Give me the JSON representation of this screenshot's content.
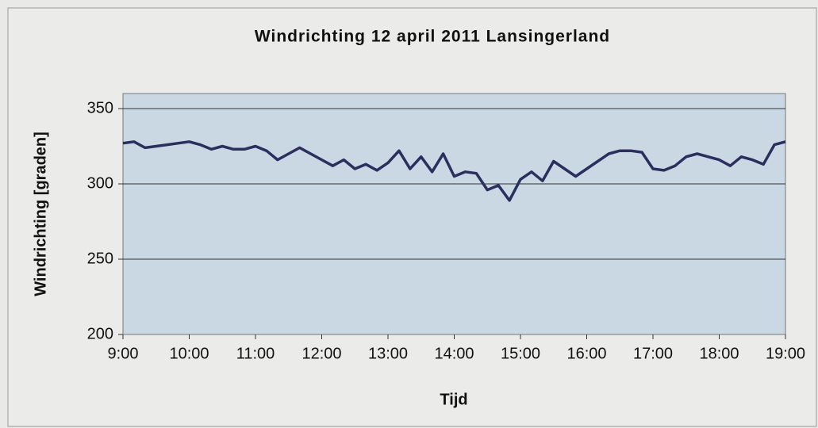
{
  "chart_data": {
    "type": "line",
    "title": "Windrichting 12 april 2011 Lansingerland",
    "x_label": "Tijd",
    "y_label": "Windrichting [graden]",
    "x": [
      540,
      550,
      560,
      570,
      580,
      590,
      600,
      610,
      620,
      630,
      640,
      650,
      660,
      670,
      680,
      690,
      700,
      710,
      720,
      730,
      740,
      750,
      760,
      770,
      780,
      790,
      800,
      810,
      820,
      830,
      840,
      850,
      860,
      870,
      880,
      890,
      900,
      910,
      920,
      930,
      940,
      950,
      960,
      970,
      980,
      990,
      1000,
      1010,
      1020,
      1030,
      1040,
      1050,
      1060,
      1070,
      1080,
      1090,
      1100,
      1110,
      1120,
      1130,
      1140
    ],
    "series": [
      {
        "name": "Windrichting",
        "color": "#2b2f5e",
        "values": [
          327,
          328,
          324,
          325,
          326,
          327,
          328,
          326,
          323,
          325,
          323,
          323,
          325,
          322,
          316,
          320,
          324,
          320,
          316,
          312,
          316,
          310,
          313,
          309,
          314,
          322,
          310,
          318,
          308,
          320,
          305,
          308,
          307,
          296,
          299,
          289,
          303,
          308,
          302,
          315,
          310,
          305,
          310,
          315,
          320,
          322,
          322,
          321,
          310,
          309,
          312,
          318,
          320,
          318,
          316,
          312,
          318,
          316,
          313,
          326,
          328
        ]
      }
    ],
    "xlim": [
      540,
      1140
    ],
    "xticks": [
      {
        "value": 540,
        "label": "9:00"
      },
      {
        "value": 600,
        "label": "10:00"
      },
      {
        "value": 660,
        "label": "11:00"
      },
      {
        "value": 720,
        "label": "12:00"
      },
      {
        "value": 780,
        "label": "13:00"
      },
      {
        "value": 840,
        "label": "14:00"
      },
      {
        "value": 900,
        "label": "15:00"
      },
      {
        "value": 960,
        "label": "16:00"
      },
      {
        "value": 1020,
        "label": "17:00"
      },
      {
        "value": 1080,
        "label": "18:00"
      },
      {
        "value": 1140,
        "label": "19:00"
      }
    ],
    "ylim": [
      200,
      360
    ],
    "yticks": [
      200,
      250,
      300,
      350
    ],
    "grid": true
  }
}
